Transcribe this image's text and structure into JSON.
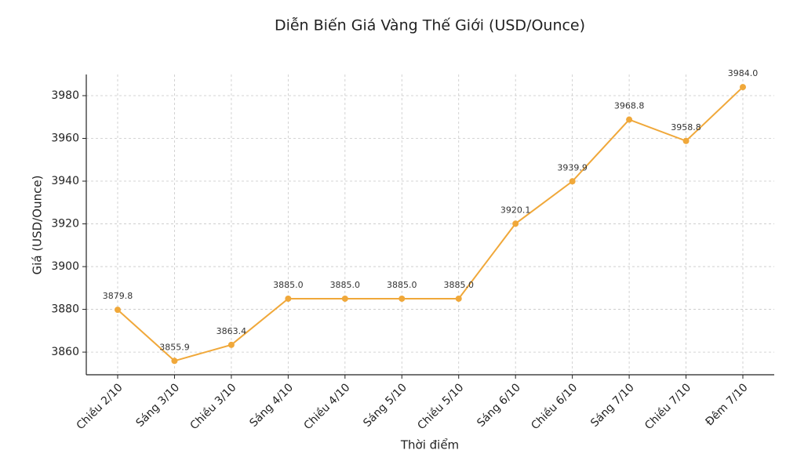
{
  "chart_data": {
    "type": "line",
    "title": "Diễn Biến Giá Vàng Thế Giới (USD/Ounce)",
    "x_label": "Thời điểm",
    "y_label": "Giá (USD/Ounce)",
    "categories": [
      "Chiều 2/10",
      "Sáng 3/10",
      "Chiều 3/10",
      "Sáng 4/10",
      "Chiều 4/10",
      "Sáng 5/10",
      "Chiều 5/10",
      "Sáng 6/10",
      "Chiều 6/10",
      "Sáng 7/10",
      "Chiều 7/10",
      "Đêm 7/10"
    ],
    "values": [
      3879.8,
      3855.9,
      3863.4,
      3885.0,
      3885.0,
      3885.0,
      3885.0,
      3920.1,
      3939.9,
      3968.8,
      3958.8,
      3984.0
    ],
    "value_labels": [
      "3879.8",
      "3855.9",
      "3863.4",
      "3885.0",
      "3885.0",
      "3885.0",
      "3885.0",
      "3920.1",
      "3939.9",
      "3968.8",
      "3958.8",
      "3984.0"
    ],
    "color": "#f0a83a",
    "ylim": [
      3849.4,
      3989.9
    ],
    "yticks": [
      3860,
      3880,
      3900,
      3920,
      3940,
      3960,
      3980
    ],
    "grid": true
  }
}
